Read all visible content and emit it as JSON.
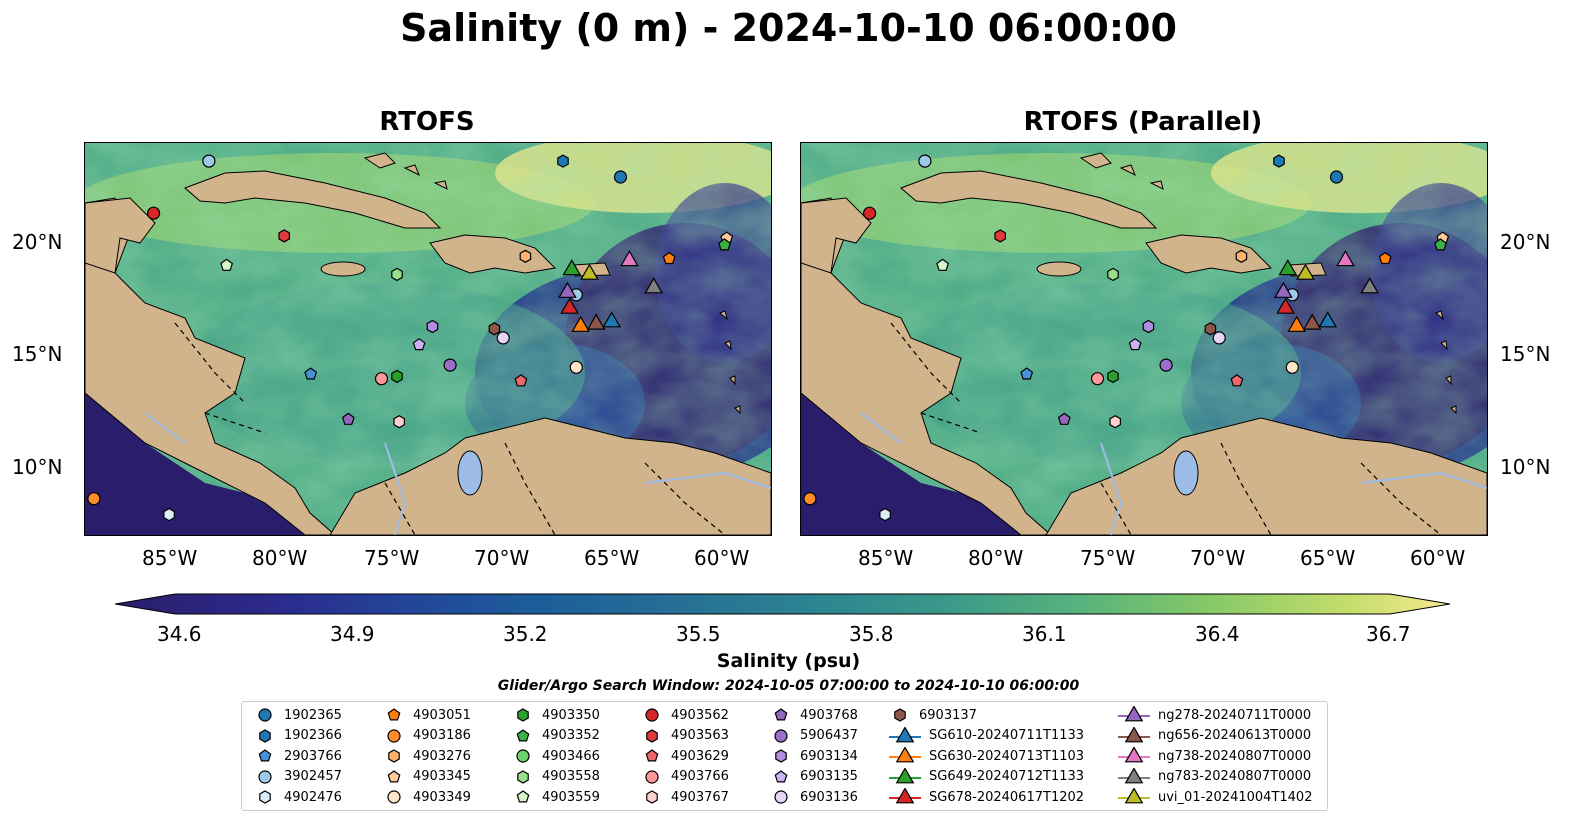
{
  "title": "Salinity (0 m) - 2024-10-10 06:00:00",
  "panels": [
    {
      "title": "RTOFS"
    },
    {
      "title": "RTOFS (Parallel)"
    }
  ],
  "axes": {
    "lon_labels": [
      "85°W",
      "80°W",
      "75°W",
      "70°W",
      "65°W",
      "60°W"
    ],
    "lat_labels": [
      "20°N",
      "15°N",
      "10°N"
    ]
  },
  "colorbar": {
    "label": "Salinity (psu)",
    "min": 34.6,
    "max": 36.7,
    "ticks": [
      "34.6",
      "34.9",
      "35.2",
      "35.5",
      "35.8",
      "36.1",
      "36.4",
      "36.7"
    ],
    "colors": [
      "#2a1d6b",
      "#2c2a8c",
      "#23459a",
      "#1c5e9a",
      "#266f95",
      "#2d8391",
      "#3a988a",
      "#57b27d",
      "#86c867",
      "#c2dc6b",
      "#f6e98c"
    ]
  },
  "search_window": "Glider/Argo Search Window: 2024-10-05 07:00:00 to 2024-10-10 06:00:00",
  "colors": {
    "land": "#d2b48c",
    "lakes": "#9dbde8"
  },
  "legend": [
    {
      "label": "1902365",
      "marker": "circle",
      "color": "#1f77b4"
    },
    {
      "label": "1902366",
      "marker": "hexagon",
      "color": "#1f77b4"
    },
    {
      "label": "2903766",
      "marker": "pentagon",
      "color": "#4a90d9"
    },
    {
      "label": "3902457",
      "marker": "circle",
      "color": "#9ecae9"
    },
    {
      "label": "4902476",
      "marker": "hexagon",
      "color": "#dbeefa"
    },
    {
      "label": "4903051",
      "marker": "pentagon",
      "color": "#ff7f0e"
    },
    {
      "label": "4903186",
      "marker": "circle",
      "color": "#ff8c2a"
    },
    {
      "label": "4903276",
      "marker": "hexagon",
      "color": "#ffb26b"
    },
    {
      "label": "4903345",
      "marker": "pentagon",
      "color": "#ffcc99"
    },
    {
      "label": "4903349",
      "marker": "circle",
      "color": "#fde5c8"
    },
    {
      "label": "4903350",
      "marker": "hexagon",
      "color": "#2ca02c"
    },
    {
      "label": "4903352",
      "marker": "pentagon",
      "color": "#3cb043"
    },
    {
      "label": "4903466",
      "marker": "circle",
      "color": "#6cd46c"
    },
    {
      "label": "4903558",
      "marker": "hexagon",
      "color": "#98df8a"
    },
    {
      "label": "4903559",
      "marker": "pentagon",
      "color": "#d4f7c9"
    },
    {
      "label": "4903562",
      "marker": "circle",
      "color": "#d62728"
    },
    {
      "label": "4903563",
      "marker": "hexagon",
      "color": "#e0393e"
    },
    {
      "label": "4903629",
      "marker": "pentagon",
      "color": "#f0676b"
    },
    {
      "label": "4903766",
      "marker": "circle",
      "color": "#ff9896"
    },
    {
      "label": "4903767",
      "marker": "hexagon",
      "color": "#ffd0cc"
    },
    {
      "label": "4903768",
      "marker": "pentagon",
      "color": "#9467bd"
    },
    {
      "label": "5906437",
      "marker": "circle",
      "color": "#9a6fc7"
    },
    {
      "label": "6903134",
      "marker": "hexagon",
      "color": "#b28ce0"
    },
    {
      "label": "6903135",
      "marker": "pentagon",
      "color": "#cbb2f0"
    },
    {
      "label": "6903136",
      "marker": "circle",
      "color": "#e6d5f7"
    },
    {
      "label": "6903137",
      "marker": "hexagon",
      "color": "#8c564b"
    },
    {
      "label": "SG610-20240711T1133",
      "marker": "triangle",
      "color": "#1f77b4"
    },
    {
      "label": "SG630-20240713T1103",
      "marker": "triangle",
      "color": "#ff7f0e"
    },
    {
      "label": "SG649-20240712T1133",
      "marker": "triangle",
      "color": "#2ca02c"
    },
    {
      "label": "SG678-20240617T1202",
      "marker": "triangle",
      "color": "#d62728"
    },
    {
      "label": "ng278-20240711T0000",
      "marker": "triangle",
      "color": "#9467bd"
    },
    {
      "label": "ng656-20240613T0000",
      "marker": "triangle",
      "color": "#8c564b"
    },
    {
      "label": "ng738-20240807T0000",
      "marker": "triangle",
      "color": "#e377c2"
    },
    {
      "label": "ng783-20240807T0000",
      "marker": "triangle",
      "color": "#7f7f7f"
    },
    {
      "label": "uvi_01-20241004T1402",
      "marker": "triangle",
      "color": "#bcbd22"
    }
  ]
}
